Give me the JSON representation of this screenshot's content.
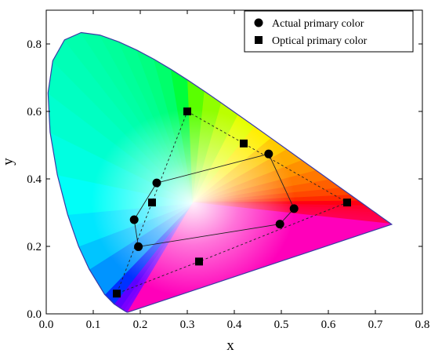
{
  "chart_data": {
    "type": "scatter",
    "xlabel": "x",
    "ylabel": "y",
    "xlim": [
      0.0,
      0.8
    ],
    "ylim": [
      0.0,
      0.9
    ],
    "x_ticks": [
      "0.0",
      "0.1",
      "0.2",
      "0.3",
      "0.4",
      "0.5",
      "0.6",
      "0.7",
      "0.8"
    ],
    "y_ticks": [
      "0.0",
      "0.2",
      "0.4",
      "0.6",
      "0.8"
    ],
    "legend_position": "top-right",
    "grid": false,
    "background": "CIE 1931 chromaticity diagram",
    "spectral_locus": [
      [
        0.1741,
        0.005
      ],
      [
        0.1738,
        0.0049
      ],
      [
        0.1733,
        0.0048
      ],
      [
        0.1726,
        0.0048
      ],
      [
        0.1714,
        0.0051
      ],
      [
        0.1689,
        0.0069
      ],
      [
        0.1644,
        0.0109
      ],
      [
        0.1566,
        0.0177
      ],
      [
        0.144,
        0.0297
      ],
      [
        0.1241,
        0.0578
      ],
      [
        0.0913,
        0.1327
      ],
      [
        0.0687,
        0.2007
      ],
      [
        0.0454,
        0.295
      ],
      [
        0.0235,
        0.4127
      ],
      [
        0.0082,
        0.5384
      ],
      [
        0.0039,
        0.6548
      ],
      [
        0.0139,
        0.7502
      ],
      [
        0.0389,
        0.812
      ],
      [
        0.0743,
        0.8338
      ],
      [
        0.1142,
        0.8262
      ],
      [
        0.1547,
        0.8059
      ],
      [
        0.1929,
        0.7816
      ],
      [
        0.2296,
        0.7543
      ],
      [
        0.2658,
        0.7243
      ],
      [
        0.3016,
        0.6923
      ],
      [
        0.3373,
        0.6589
      ],
      [
        0.3731,
        0.6245
      ],
      [
        0.4087,
        0.5896
      ],
      [
        0.4441,
        0.5547
      ],
      [
        0.4788,
        0.5202
      ],
      [
        0.5125,
        0.4866
      ],
      [
        0.5448,
        0.4544
      ],
      [
        0.5752,
        0.4242
      ],
      [
        0.6029,
        0.3965
      ],
      [
        0.627,
        0.3725
      ],
      [
        0.6482,
        0.3514
      ],
      [
        0.6658,
        0.334
      ],
      [
        0.6801,
        0.3197
      ],
      [
        0.6915,
        0.3083
      ],
      [
        0.7006,
        0.2993
      ],
      [
        0.7079,
        0.292
      ],
      [
        0.714,
        0.2859
      ],
      [
        0.719,
        0.2809
      ],
      [
        0.723,
        0.277
      ],
      [
        0.726,
        0.274
      ],
      [
        0.7283,
        0.2717
      ],
      [
        0.73,
        0.27
      ],
      [
        0.7311,
        0.2689
      ],
      [
        0.732,
        0.268
      ],
      [
        0.7327,
        0.2673
      ],
      [
        0.7334,
        0.2666
      ],
      [
        0.734,
        0.266
      ],
      [
        0.7344,
        0.2656
      ],
      [
        0.7346,
        0.2654
      ],
      [
        0.7347,
        0.2653
      ]
    ],
    "series": [
      {
        "name": "Actual primary color",
        "marker": "circle",
        "points": [
          [
            0.235,
            0.388
          ],
          [
            0.473,
            0.474
          ],
          [
            0.527,
            0.312
          ],
          [
            0.497,
            0.266
          ],
          [
            0.196,
            0.199
          ],
          [
            0.187,
            0.279
          ]
        ],
        "connection": "closed polygon, solid thin line"
      },
      {
        "name": "Optical primary color",
        "marker": "square",
        "points": [
          [
            0.3,
            0.6
          ],
          [
            0.42,
            0.505
          ],
          [
            0.64,
            0.33
          ],
          [
            0.325,
            0.155
          ],
          [
            0.15,
            0.06
          ],
          [
            0.225,
            0.33
          ]
        ],
        "connection": "closed polygon, dashed thin line"
      }
    ]
  }
}
